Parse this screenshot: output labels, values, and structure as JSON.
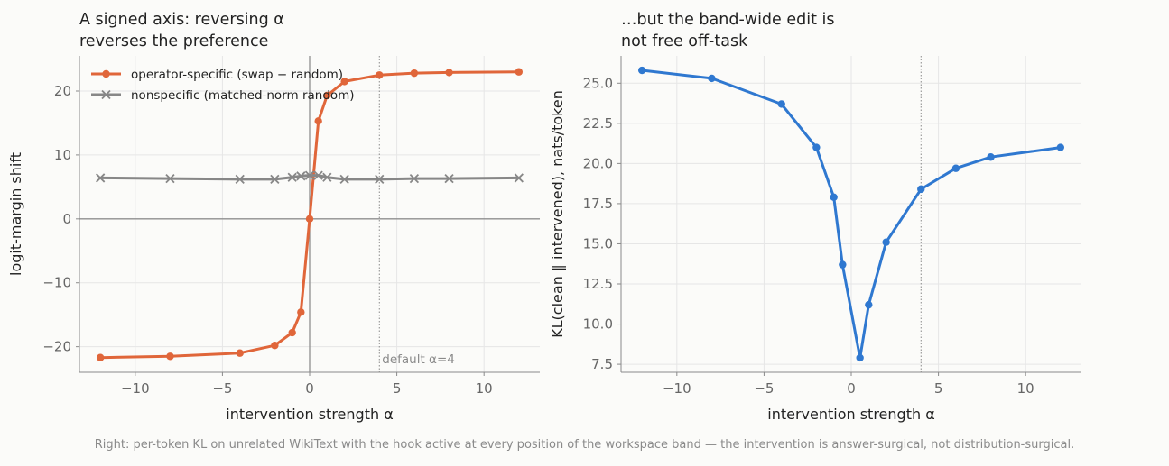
{
  "caption": "Right: per-token KL on unrelated WikiText with the hook active at every position of the workspace band — the intervention is answer-surgical, not distribution-surgical.",
  "colors": {
    "orange": "#e0663a",
    "gray": "#878787",
    "blue": "#2f78d0",
    "grid": "#e6e6e6",
    "axis": "#8a8a8a",
    "background": "#fbfbf9"
  },
  "chart_data": [
    {
      "type": "line",
      "title": [
        "A signed axis: reversing α",
        "reverses the preference"
      ],
      "xlabel": "intervention strength α",
      "ylabel": "logit-margin shift",
      "xlim": [
        -13.2,
        13.2
      ],
      "ylim": [
        -24,
        25.5
      ],
      "xticks": [
        -10,
        -5,
        0,
        5,
        10
      ],
      "yticks": [
        -20,
        -10,
        0,
        10,
        20
      ],
      "xtick_labels": [
        "−10",
        "−5",
        "0",
        "5",
        "10"
      ],
      "ytick_labels": [
        "−20",
        "−10",
        "0",
        "10",
        "20"
      ],
      "grid": true,
      "legend": "top-left",
      "series": [
        {
          "name": "operator-specific (swap − random)",
          "marker": "circle",
          "color": "#e0663a",
          "x": [
            -12,
            -8,
            -4,
            -2,
            -1,
            -0.5,
            0,
            0.5,
            1,
            2,
            4,
            6,
            8,
            12
          ],
          "y": [
            -21.7,
            -21.5,
            -21.0,
            -19.8,
            -17.8,
            -14.6,
            0,
            15.3,
            19.3,
            21.5,
            22.5,
            22.8,
            22.9,
            23.0
          ]
        },
        {
          "name": "nonspecific (matched-norm random)",
          "marker": "x",
          "color": "#878787",
          "x": [
            -12,
            -8,
            -4,
            -2,
            -1,
            -0.5,
            0,
            0.5,
            1,
            2,
            4,
            6,
            8,
            12
          ],
          "y": [
            6.4,
            6.3,
            6.2,
            6.2,
            6.5,
            6.7,
            6.8,
            6.8,
            6.5,
            6.2,
            6.2,
            6.3,
            6.3,
            6.4
          ]
        }
      ],
      "reference_lines": {
        "x": 0,
        "y": 0,
        "default_alpha": 4
      },
      "annotation": "default α=4"
    },
    {
      "type": "line",
      "title": [
        "…but the band-wide edit is",
        "not free off-task"
      ],
      "xlabel": "intervention strength α",
      "ylabel": "KL(clean ‖ intervened), nats/token",
      "xlim": [
        -13.2,
        13.2
      ],
      "ylim": [
        7.0,
        26.7
      ],
      "xticks": [
        -10,
        -5,
        0,
        5,
        10
      ],
      "yticks": [
        7.5,
        10.0,
        12.5,
        15.0,
        17.5,
        20.0,
        22.5,
        25.0
      ],
      "xtick_labels": [
        "−10",
        "−5",
        "0",
        "5",
        "10"
      ],
      "ytick_labels": [
        "7.5",
        "10.0",
        "12.5",
        "15.0",
        "17.5",
        "20.0",
        "22.5",
        "25.0"
      ],
      "grid": true,
      "series": [
        {
          "marker": "circle",
          "color": "#2f78d0",
          "x": [
            -12,
            -8,
            -4,
            -2,
            -1,
            -0.5,
            0.5,
            1,
            2,
            4,
            6,
            8,
            12
          ],
          "y": [
            25.8,
            25.3,
            23.7,
            21.0,
            17.9,
            13.7,
            7.9,
            11.2,
            15.1,
            18.4,
            19.7,
            20.4,
            21.0
          ]
        }
      ],
      "reference_lines": {
        "default_alpha": 4
      }
    }
  ]
}
